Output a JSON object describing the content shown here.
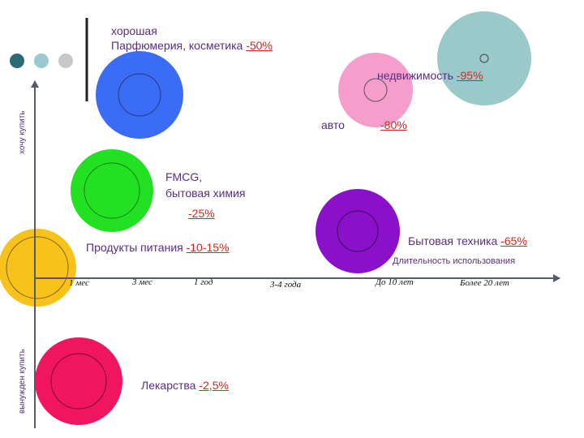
{
  "axes": {
    "y_top_label": "хочу купить",
    "y_bottom_label": "вынужден купить",
    "x_label": "Длительность использования",
    "x_ticks": [
      "1 мес",
      "3 мес",
      "1 год",
      "3-4 года",
      "До 10 лет",
      "Более 20 лет"
    ]
  },
  "categories": {
    "perfume": {
      "word": "хорошая",
      "name": "Парфюмерия,  косметика",
      "pct": "-50%"
    },
    "realty": {
      "name": "недвижимость",
      "pct": "-95%"
    },
    "auto": {
      "name": "авто",
      "pct": "-80%"
    },
    "fmcg": {
      "line1": "FMCG,",
      "line2": "бытовая химия",
      "pct": "-25%"
    },
    "food": {
      "name": "Продукты питания",
      "pct": "-10-15%"
    },
    "appliances": {
      "name": "Бытовая техника",
      "pct": "-65%"
    },
    "medicine": {
      "name": "Лекарства",
      "pct": "-2,5%"
    }
  },
  "colors": {
    "perfume": "#3b6cf5",
    "realty": "#9ac9c9",
    "auto": "#f59ecb",
    "fmcg": "#22e022",
    "food": "#f7c21a",
    "appliances": "#8a10c9",
    "medicine": "#f0155f",
    "dot_dark": "#2b6b73",
    "dot_mid": "#9ac9cf",
    "dot_light": "#c8c8c8",
    "axis": "#555a6e"
  }
}
